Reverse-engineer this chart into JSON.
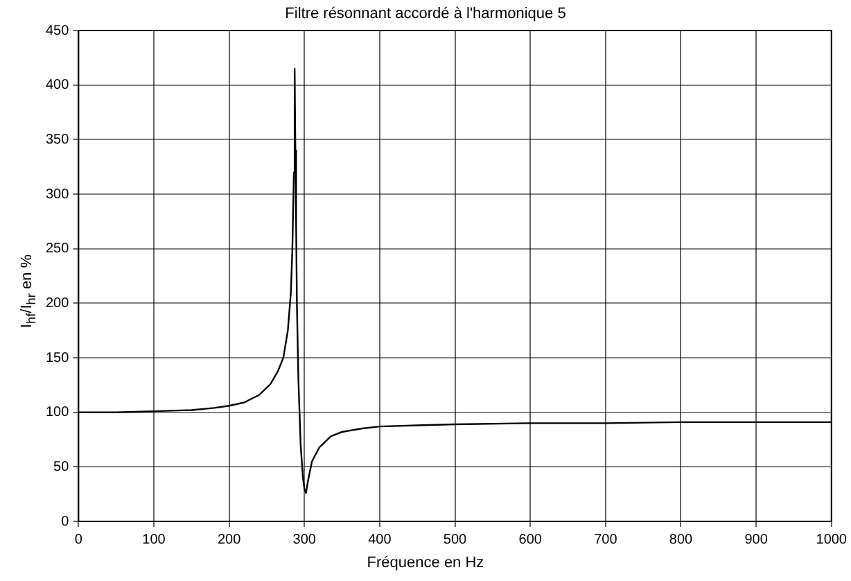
{
  "chart_data": {
    "type": "line",
    "title": "Filtre résonnant accordé à l'harmonique 5",
    "xlabel": "Fréquence en Hz",
    "ylabel": "I$_{hf}$/I$_{hr}$ en %",
    "color": "#000000",
    "x": [
      0,
      50,
      100,
      150,
      180,
      200,
      220,
      240,
      255,
      265,
      272,
      278,
      282,
      284,
      286,
      287,
      288,
      289,
      290,
      292,
      295,
      298,
      300,
      302,
      305,
      310,
      320,
      335,
      350,
      375,
      400,
      450,
      500,
      600,
      700,
      800,
      900,
      1000
    ],
    "values": [
      100,
      100,
      101,
      102,
      104,
      106,
      109,
      116,
      126,
      138,
      150,
      175,
      210,
      250,
      320,
      415,
      340,
      270,
      200,
      130,
      70,
      40,
      30,
      26,
      38,
      55,
      68,
      78,
      82,
      85,
      87,
      88,
      89,
      90,
      90,
      91,
      91,
      91
    ],
    "xlim": [
      0,
      1000
    ],
    "xticks": [
      0,
      100,
      200,
      300,
      400,
      500,
      600,
      700,
      800,
      900,
      1000
    ],
    "ylim": [
      0,
      450
    ],
    "yticks": [
      0,
      50,
      100,
      150,
      200,
      250,
      300,
      350,
      400,
      450
    ],
    "grid": true
  }
}
